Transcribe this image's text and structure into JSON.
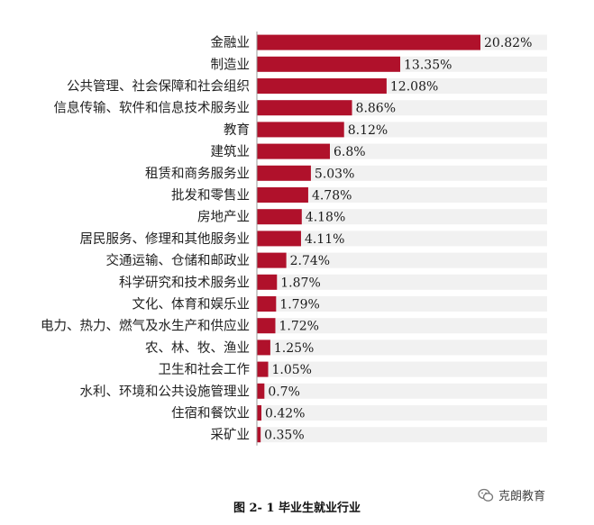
{
  "chart_data": {
    "type": "bar",
    "orientation": "horizontal",
    "title": "图 2- 1 毕业生就业行业",
    "categories": [
      "金融业",
      "制造业",
      "公共管理、社会保障和社会组织",
      "信息传输、软件和信息技术服务业",
      "教育",
      "建筑业",
      "租赁和商务服务业",
      "批发和零售业",
      "房地产业",
      "居民服务、修理和其他服务业",
      "交通运输、仓储和邮政业",
      "科学研究和技术服务业",
      "文化、体育和娱乐业",
      "电力、热力、燃气及水生产和供应业",
      "农、林、牧、渔业",
      "卫生和社会工作",
      "水利、环境和公共设施管理业",
      "住宿和餐饮业",
      "采矿业"
    ],
    "values": [
      20.82,
      13.35,
      12.08,
      8.86,
      8.12,
      6.8,
      5.03,
      4.78,
      4.18,
      4.11,
      2.74,
      1.87,
      1.79,
      1.72,
      1.25,
      1.05,
      0.7,
      0.42,
      0.35
    ],
    "value_labels": [
      "20.82%",
      "13.35%",
      "12.08%",
      "8.86%",
      "8.12%",
      "6.8%",
      "5.03%",
      "4.78%",
      "4.18%",
      "4.11%",
      "2.74%",
      "1.87%",
      "1.79%",
      "1.72%",
      "1.25%",
      "1.05%",
      "0.7%",
      "0.42%",
      "0.35%"
    ],
    "xlim": [
      0,
      24
    ],
    "grid": false,
    "legend": "none",
    "colors": {
      "bar": "#b0112b",
      "track": "#f1f1f1",
      "axis": "#9a9a9a"
    }
  },
  "watermark": {
    "text": "克朗教育",
    "icon": "wechat-icon"
  }
}
